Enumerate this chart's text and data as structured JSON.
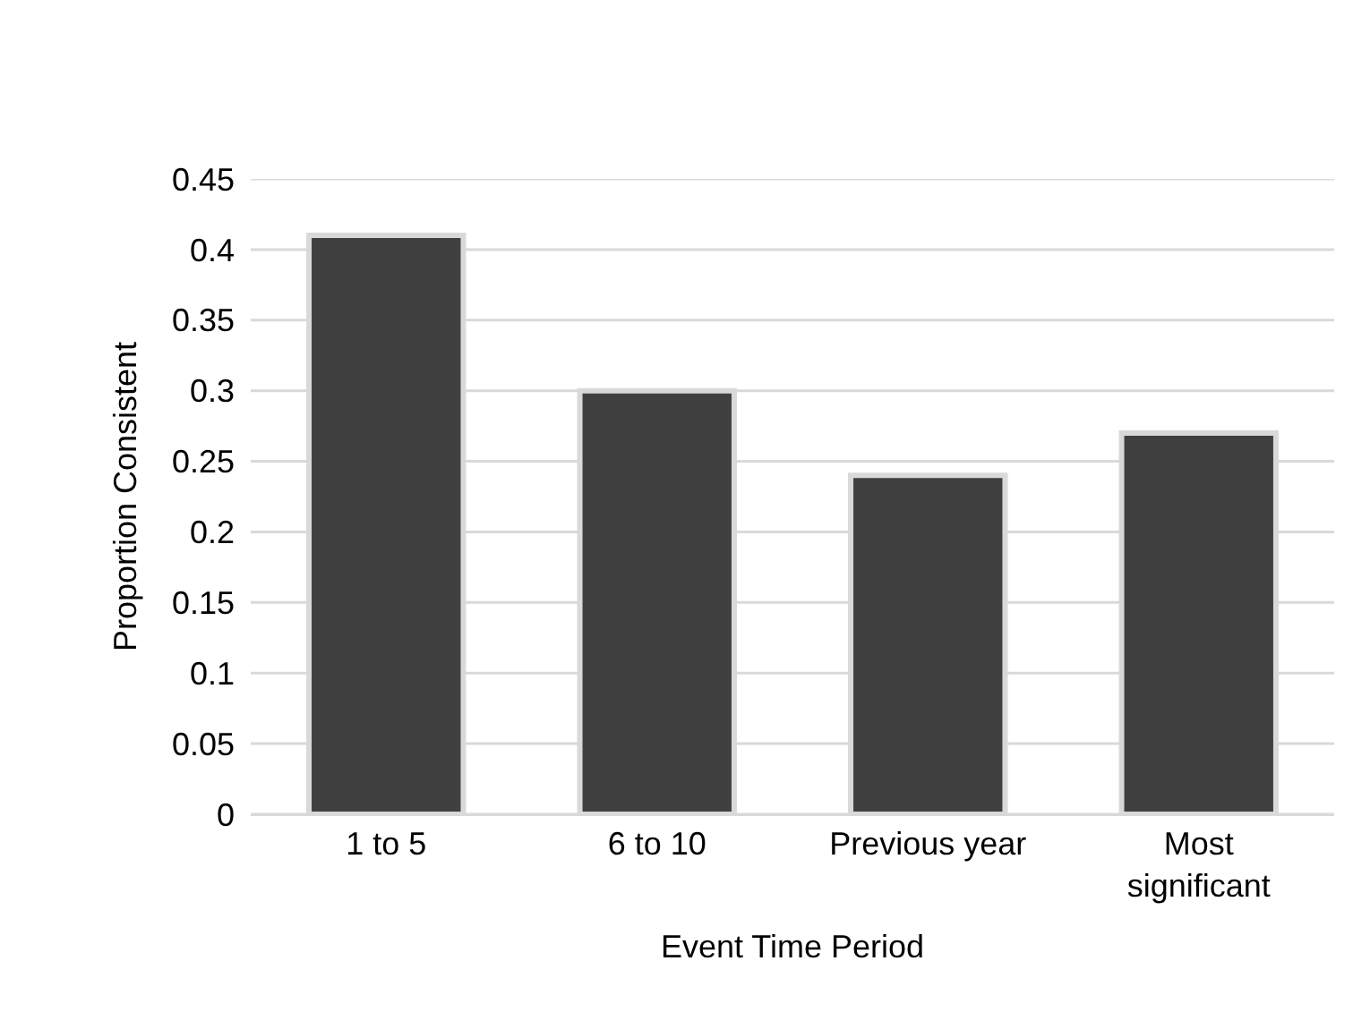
{
  "chart_data": {
    "type": "bar",
    "xlabel": "Event Time Period",
    "ylabel": "Proportion Consistent",
    "categories": [
      "1 to 5",
      "6 to 10",
      "Previous year",
      "Most significant"
    ],
    "values": [
      0.41,
      0.3,
      0.24,
      0.27
    ],
    "color": "#404040",
    "ylim": [
      0,
      0.45
    ],
    "yticks": [
      0,
      0.05,
      0.1,
      0.15,
      0.2,
      0.25,
      0.3,
      0.35,
      0.4,
      0.45
    ],
    "grid": "y"
  }
}
